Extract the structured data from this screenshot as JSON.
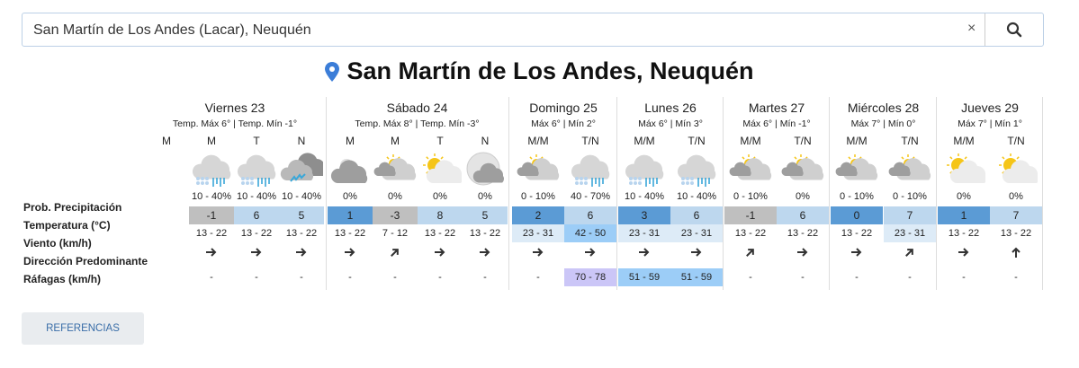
{
  "search": {
    "value": "San Martín de Los Andes (Lacar), Neuquén",
    "clear_label": "×"
  },
  "title": "San Martín de Los Andes, Neuquén",
  "row_labels": [
    "Prob. Precipitación",
    "Temperatura (°C)",
    "Viento (km/h)",
    "Dirección Predominante",
    "Ráfagas (km/h)"
  ],
  "colors": {
    "temp_cold": "#bfbfbf",
    "temp_low": "#5b9bd5",
    "temp_mid": "#bdd7ee",
    "wind_mid": "#ddebf7",
    "wind_high": "#9ccdf7",
    "gust_extreme": "#cbc6f7"
  },
  "days": [
    {
      "name": "Viernes 23",
      "temps": "Temp. Máx 6° | Temp. Mín -1°",
      "periods": [
        {
          "p": "M",
          "empty": true
        },
        {
          "p": "M",
          "icon": "snow-rain",
          "prob": "10 - 40%",
          "temp": "-1",
          "tc": "temp_cold",
          "wind": "13 - 22",
          "dir": "E",
          "gust": "-"
        },
        {
          "p": "T",
          "icon": "snow-rain",
          "prob": "10 - 40%",
          "temp": "6",
          "tc": "temp_mid",
          "wind": "13 - 22",
          "dir": "E",
          "gust": "-"
        },
        {
          "p": "N",
          "icon": "storm",
          "prob": "10 - 40%",
          "temp": "5",
          "tc": "temp_mid",
          "wind": "13 - 22",
          "dir": "E",
          "gust": "-"
        }
      ]
    },
    {
      "name": "Sábado 24",
      "temps": "Temp. Máx 8° | Temp. Mín -3°",
      "periods": [
        {
          "p": "M",
          "icon": "cloudy-night",
          "prob": "0%",
          "temp": "1",
          "tc": "temp_low",
          "wind": "13 - 22",
          "dir": "E",
          "gust": "-"
        },
        {
          "p": "M",
          "icon": "partly-cloudy",
          "prob": "0%",
          "temp": "-3",
          "tc": "temp_cold",
          "wind": "7 - 12",
          "dir": "NE",
          "gust": "-"
        },
        {
          "p": "T",
          "icon": "sunny-cloudy",
          "prob": "0%",
          "temp": "8",
          "tc": "temp_mid",
          "wind": "13 - 22",
          "dir": "E",
          "gust": "-"
        },
        {
          "p": "N",
          "icon": "moon-cloudy",
          "prob": "0%",
          "temp": "5",
          "tc": "temp_mid",
          "wind": "13 - 22",
          "dir": "E",
          "gust": "-"
        }
      ]
    },
    {
      "name": "Domingo 25",
      "temps": "Máx 6° | Mín 2°",
      "periods": [
        {
          "p": "M/M",
          "icon": "partly-cloudy",
          "prob": "0 - 10%",
          "temp": "2",
          "tc": "temp_low",
          "wind": "23 - 31",
          "wc": "wind_mid",
          "dir": "E",
          "gust": "-"
        },
        {
          "p": "T/N",
          "icon": "snow-rain",
          "prob": "40 - 70%",
          "temp": "6",
          "tc": "temp_mid",
          "wind": "42 - 50",
          "wc": "wind_high",
          "dir": "E",
          "gust": "70 - 78",
          "gc": "gust_extreme"
        }
      ]
    },
    {
      "name": "Lunes 26",
      "temps": "Máx 6° | Mín 3°",
      "periods": [
        {
          "p": "M/M",
          "icon": "snow-rain",
          "prob": "10 - 40%",
          "temp": "3",
          "tc": "temp_low",
          "wind": "23 - 31",
          "wc": "wind_mid",
          "dir": "E",
          "gust": "51 - 59",
          "gc": "wind_high"
        },
        {
          "p": "T/N",
          "icon": "snow-rain",
          "prob": "10 - 40%",
          "temp": "6",
          "tc": "temp_mid",
          "wind": "23 - 31",
          "wc": "wind_mid",
          "dir": "E",
          "gust": "51 - 59",
          "gc": "wind_high"
        }
      ]
    },
    {
      "name": "Martes 27",
      "temps": "Máx 6° | Mín -1°",
      "periods": [
        {
          "p": "M/M",
          "icon": "partly-cloudy",
          "prob": "0 - 10%",
          "temp": "-1",
          "tc": "temp_cold",
          "wind": "13 - 22",
          "dir": "NE",
          "gust": "-"
        },
        {
          "p": "T/N",
          "icon": "partly-cloudy",
          "prob": "0%",
          "temp": "6",
          "tc": "temp_mid",
          "wind": "13 - 22",
          "dir": "E",
          "gust": "-"
        }
      ]
    },
    {
      "name": "Miércoles 28",
      "temps": "Máx 7° | Mín 0°",
      "periods": [
        {
          "p": "M/M",
          "icon": "partly-cloudy",
          "prob": "0 - 10%",
          "temp": "0",
          "tc": "temp_low",
          "wind": "13 - 22",
          "dir": "E",
          "gust": "-"
        },
        {
          "p": "T/N",
          "icon": "partly-cloudy",
          "prob": "0 - 10%",
          "temp": "7",
          "tc": "temp_mid",
          "wind": "23 - 31",
          "wc": "wind_mid",
          "dir": "NE",
          "gust": "-"
        }
      ]
    },
    {
      "name": "Jueves 29",
      "temps": "Máx 7° | Mín 1°",
      "periods": [
        {
          "p": "M/M",
          "icon": "sunny-cloudy",
          "prob": "0%",
          "temp": "1",
          "tc": "temp_low",
          "wind": "13 - 22",
          "dir": "E",
          "gust": "-"
        },
        {
          "p": "T/N",
          "icon": "sunny-cloudy",
          "prob": "0%",
          "temp": "7",
          "tc": "temp_mid",
          "wind": "13 - 22",
          "dir": "N",
          "gust": "-"
        }
      ]
    }
  ],
  "references_button": "REFERENCIAS"
}
